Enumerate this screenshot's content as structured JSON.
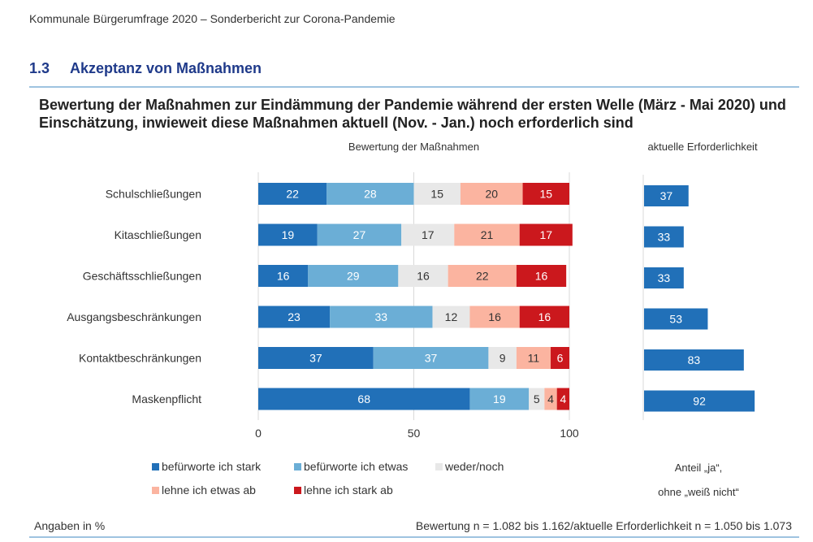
{
  "header": {
    "doc_title": "Kommunale Bürgerumfrage 2020 – Sonderbericht zur Corona-Pandemie",
    "section_number": "1.3",
    "section_title": "Akzeptanz von Maßnahmen"
  },
  "chart_title": "Bewertung der Maßnahmen zur Eindämmung der Pandemie während der ersten Welle (März - Mai 2020) und Einschätzung, inwieweit diese Maßnahmen aktuell (Nov. - Jan.) noch erforderlich sind",
  "colors": {
    "stark_dafuer": "#2170b8",
    "etwas_dafuer": "#6baed6",
    "weder": "#e8e8e8",
    "etwas_dagegen": "#fbb4a0",
    "stark_dagegen": "#cb181d",
    "axis": "#d9d9d9",
    "rule": "#9ec3e0"
  },
  "chart_data": [
    {
      "type": "bar",
      "orientation": "horizontal",
      "stacked": true,
      "title": "Bewertung der Maßnahmen",
      "categories": [
        "Schulschließungen",
        "Kitaschließungen",
        "Geschäftsschließungen",
        "Ausgangsbeschränkungen",
        "Kontaktbeschränkungen",
        "Maskenpflicht"
      ],
      "series": [
        {
          "name": "befürworte ich stark",
          "values": [
            22,
            19,
            16,
            23,
            37,
            68
          ]
        },
        {
          "name": "befürworte ich etwas",
          "values": [
            28,
            27,
            29,
            33,
            37,
            19
          ]
        },
        {
          "name": "weder/noch",
          "values": [
            15,
            17,
            16,
            12,
            9,
            5
          ]
        },
        {
          "name": "lehne ich etwas ab",
          "values": [
            20,
            21,
            22,
            16,
            11,
            4
          ]
        },
        {
          "name": "lehne ich stark ab",
          "values": [
            15,
            17,
            16,
            16,
            6,
            4
          ]
        }
      ],
      "xlim": [
        0,
        100
      ],
      "xticks": [
        "0",
        "50",
        "100"
      ],
      "grid": true,
      "legend": "bottom"
    },
    {
      "type": "bar",
      "orientation": "horizontal",
      "title": "aktuelle Erforderlichkeit",
      "categories": [
        "Schulschließungen",
        "Kitaschließungen",
        "Geschäftsschließungen",
        "Ausgangsbeschränkungen",
        "Kontaktbeschränkungen",
        "Maskenpflicht"
      ],
      "values": [
        37,
        33,
        33,
        53,
        83,
        92
      ],
      "xlim": [
        0,
        100
      ],
      "note_line1": "Anteil „ja“,",
      "note_line2": "ohne „weiß nicht“"
    }
  ],
  "footer": {
    "left": "Angaben in %",
    "right": "Bewertung n = 1.082 bis 1.162/aktuelle Erforderlichkeit n = 1.050 bis 1.073"
  }
}
